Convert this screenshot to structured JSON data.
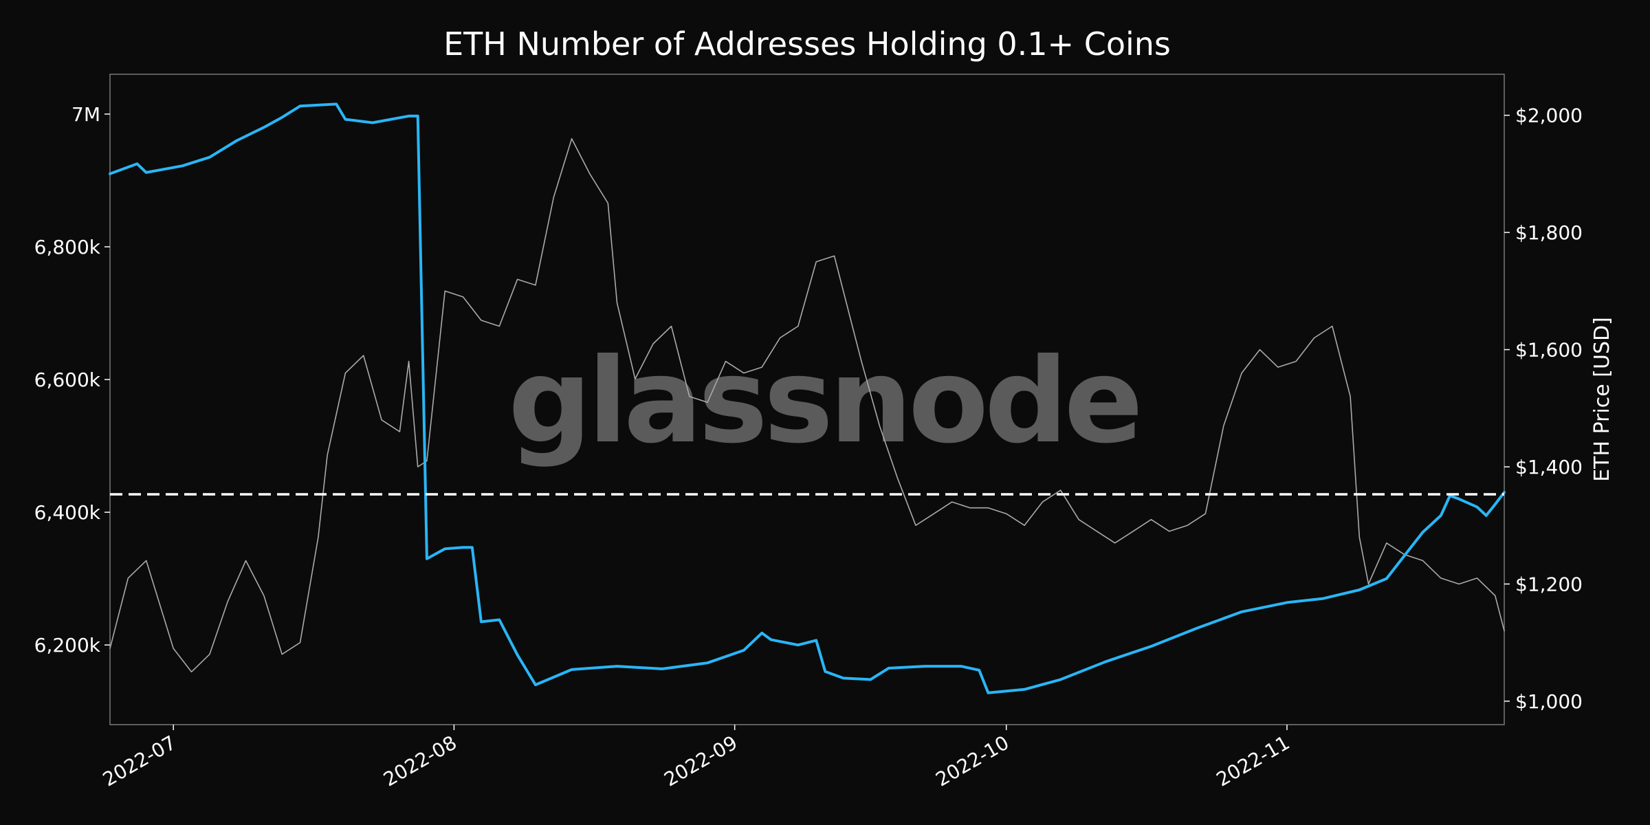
{
  "chart_data": {
    "type": "line",
    "title": "ETH Number of Addresses Holding 0.1+ Coins",
    "watermark": "glassnode",
    "x_range": [
      "2022-06-24",
      "2022-11-25"
    ],
    "x_ticks": [
      "2022-07",
      "2022-08",
      "2022-09",
      "2022-10",
      "2022-11"
    ],
    "y_left": {
      "label": "",
      "ticks": [
        "6,200k",
        "6,400k",
        "6,600k",
        "6,800k",
        "7M"
      ],
      "tick_values": [
        6200000,
        6400000,
        6600000,
        6800000,
        7000000
      ],
      "lim": [
        6080000,
        7060000
      ]
    },
    "y_right": {
      "label": "ETH Price [USD]",
      "ticks": [
        "$1,000",
        "$1,200",
        "$1,400",
        "$1,600",
        "$1,800",
        "$2,000"
      ],
      "tick_values": [
        1000,
        1200,
        1400,
        1600,
        1800,
        2000
      ],
      "lim": [
        960,
        2070
      ]
    },
    "reference_line": {
      "axis": "left",
      "value": 6427000,
      "style": "dashed",
      "color": "#ffffff"
    },
    "series": [
      {
        "axis": "left",
        "color": "#29b6f6",
        "points": [
          [
            "2022-06-24",
            6910000
          ],
          [
            "2022-06-27",
            6925000
          ],
          [
            "2022-06-28",
            6912000
          ],
          [
            "2022-07-02",
            6922000
          ],
          [
            "2022-07-05",
            6935000
          ],
          [
            "2022-07-08",
            6960000
          ],
          [
            "2022-07-11",
            6980000
          ],
          [
            "2022-07-13",
            6995000
          ],
          [
            "2022-07-15",
            7012000
          ],
          [
            "2022-07-19",
            7015000
          ],
          [
            "2022-07-20",
            6992000
          ],
          [
            "2022-07-23",
            6987000
          ],
          [
            "2022-07-27",
            6997000
          ],
          [
            "2022-07-28",
            6997000
          ],
          [
            "2022-07-29",
            6330000
          ],
          [
            "2022-07-31",
            6345000
          ],
          [
            "2022-08-02",
            6347000
          ],
          [
            "2022-08-03",
            6347000
          ],
          [
            "2022-08-04",
            6235000
          ],
          [
            "2022-08-06",
            6238000
          ],
          [
            "2022-08-08",
            6185000
          ],
          [
            "2022-08-10",
            6140000
          ],
          [
            "2022-08-14",
            6163000
          ],
          [
            "2022-08-19",
            6168000
          ],
          [
            "2022-08-24",
            6164000
          ],
          [
            "2022-08-29",
            6173000
          ],
          [
            "2022-09-02",
            6192000
          ],
          [
            "2022-09-04",
            6218000
          ],
          [
            "2022-09-05",
            6208000
          ],
          [
            "2022-09-08",
            6200000
          ],
          [
            "2022-09-10",
            6207000
          ],
          [
            "2022-09-11",
            6160000
          ],
          [
            "2022-09-13",
            6150000
          ],
          [
            "2022-09-16",
            6148000
          ],
          [
            "2022-09-18",
            6165000
          ],
          [
            "2022-09-22",
            6168000
          ],
          [
            "2022-09-26",
            6168000
          ],
          [
            "2022-09-28",
            6162000
          ],
          [
            "2022-09-29",
            6128000
          ],
          [
            "2022-10-03",
            6133000
          ],
          [
            "2022-10-07",
            6148000
          ],
          [
            "2022-10-12",
            6175000
          ],
          [
            "2022-10-17",
            6198000
          ],
          [
            "2022-10-22",
            6225000
          ],
          [
            "2022-10-27",
            6250000
          ],
          [
            "2022-11-01",
            6264000
          ],
          [
            "2022-11-05",
            6270000
          ],
          [
            "2022-11-09",
            6283000
          ],
          [
            "2022-11-12",
            6300000
          ],
          [
            "2022-11-14",
            6335000
          ],
          [
            "2022-11-16",
            6370000
          ],
          [
            "2022-11-18",
            6395000
          ],
          [
            "2022-11-19",
            6425000
          ],
          [
            "2022-11-20",
            6420000
          ],
          [
            "2022-11-22",
            6408000
          ],
          [
            "2022-11-23",
            6395000
          ],
          [
            "2022-11-24",
            6412000
          ],
          [
            "2022-11-25",
            6430000
          ]
        ]
      },
      {
        "axis": "right",
        "color": "#aaaaaa",
        "points": [
          [
            "2022-06-24",
            1090
          ],
          [
            "2022-06-26",
            1210
          ],
          [
            "2022-06-28",
            1240
          ],
          [
            "2022-07-01",
            1090
          ],
          [
            "2022-07-03",
            1050
          ],
          [
            "2022-07-05",
            1080
          ],
          [
            "2022-07-07",
            1170
          ],
          [
            "2022-07-09",
            1240
          ],
          [
            "2022-07-11",
            1180
          ],
          [
            "2022-07-13",
            1080
          ],
          [
            "2022-07-15",
            1100
          ],
          [
            "2022-07-17",
            1280
          ],
          [
            "2022-07-18",
            1420
          ],
          [
            "2022-07-20",
            1560
          ],
          [
            "2022-07-22",
            1590
          ],
          [
            "2022-07-24",
            1480
          ],
          [
            "2022-07-26",
            1460
          ],
          [
            "2022-07-27",
            1580
          ],
          [
            "2022-07-28",
            1400
          ],
          [
            "2022-07-29",
            1410
          ],
          [
            "2022-07-31",
            1700
          ],
          [
            "2022-08-02",
            1690
          ],
          [
            "2022-08-04",
            1650
          ],
          [
            "2022-08-06",
            1640
          ],
          [
            "2022-08-08",
            1720
          ],
          [
            "2022-08-10",
            1710
          ],
          [
            "2022-08-12",
            1860
          ],
          [
            "2022-08-14",
            1960
          ],
          [
            "2022-08-16",
            1900
          ],
          [
            "2022-08-18",
            1850
          ],
          [
            "2022-08-19",
            1680
          ],
          [
            "2022-08-21",
            1550
          ],
          [
            "2022-08-23",
            1610
          ],
          [
            "2022-08-25",
            1640
          ],
          [
            "2022-08-27",
            1520
          ],
          [
            "2022-08-29",
            1510
          ],
          [
            "2022-08-31",
            1580
          ],
          [
            "2022-09-02",
            1560
          ],
          [
            "2022-09-04",
            1570
          ],
          [
            "2022-09-06",
            1620
          ],
          [
            "2022-09-08",
            1640
          ],
          [
            "2022-09-10",
            1750
          ],
          [
            "2022-09-12",
            1760
          ],
          [
            "2022-09-14",
            1640
          ],
          [
            "2022-09-15",
            1580
          ],
          [
            "2022-09-17",
            1470
          ],
          [
            "2022-09-19",
            1380
          ],
          [
            "2022-09-21",
            1300
          ],
          [
            "2022-09-23",
            1320
          ],
          [
            "2022-09-25",
            1340
          ],
          [
            "2022-09-27",
            1330
          ],
          [
            "2022-09-29",
            1330
          ],
          [
            "2022-10-01",
            1320
          ],
          [
            "2022-10-03",
            1300
          ],
          [
            "2022-10-05",
            1340
          ],
          [
            "2022-10-07",
            1360
          ],
          [
            "2022-10-09",
            1310
          ],
          [
            "2022-10-11",
            1290
          ],
          [
            "2022-10-13",
            1270
          ],
          [
            "2022-10-15",
            1290
          ],
          [
            "2022-10-17",
            1310
          ],
          [
            "2022-10-19",
            1290
          ],
          [
            "2022-10-21",
            1300
          ],
          [
            "2022-10-23",
            1320
          ],
          [
            "2022-10-25",
            1470
          ],
          [
            "2022-10-27",
            1560
          ],
          [
            "2022-10-29",
            1600
          ],
          [
            "2022-10-31",
            1570
          ],
          [
            "2022-11-02",
            1580
          ],
          [
            "2022-11-04",
            1620
          ],
          [
            "2022-11-06",
            1640
          ],
          [
            "2022-11-08",
            1520
          ],
          [
            "2022-11-09",
            1280
          ],
          [
            "2022-11-10",
            1200
          ],
          [
            "2022-11-12",
            1270
          ],
          [
            "2022-11-14",
            1250
          ],
          [
            "2022-11-16",
            1240
          ],
          [
            "2022-11-18",
            1210
          ],
          [
            "2022-11-20",
            1200
          ],
          [
            "2022-11-22",
            1210
          ],
          [
            "2022-11-24",
            1180
          ],
          [
            "2022-11-25",
            1120
          ]
        ]
      }
    ]
  }
}
